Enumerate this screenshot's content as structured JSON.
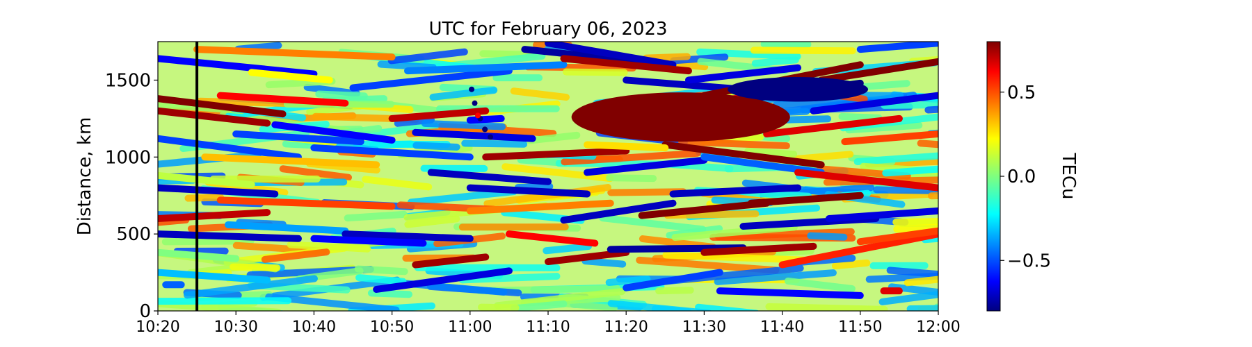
{
  "chart_data": {
    "type": "heatmap",
    "title": "UTC for February 06, 2023",
    "xlabel": "",
    "ylabel": "Distance, km",
    "colorbar_label": "TECu",
    "colormap": "jet",
    "grid": false,
    "x_ticks": [
      "10:20",
      "10:30",
      "10:40",
      "10:50",
      "11:00",
      "11:10",
      "11:20",
      "11:30",
      "11:40",
      "11:50",
      "12:00"
    ],
    "x_range_minutes": [
      0,
      100
    ],
    "y_ticks": [
      0,
      500,
      1000,
      1500
    ],
    "y_range": [
      0,
      1750
    ],
    "colorbar_ticks": [
      {
        "value": 0.5,
        "label": "0.5"
      },
      {
        "value": 0.0,
        "label": "0.0"
      },
      {
        "value": -0.5,
        "label": "−0.5"
      }
    ],
    "colorbar_range": [
      -0.8,
      0.8
    ],
    "marker": {
      "time": "10:25"
    },
    "tracks": [
      {
        "t0": 0,
        "d0": 1380,
        "t1": 16,
        "d1": 1280,
        "v": 0.8
      },
      {
        "t0": 0,
        "d0": 1640,
        "t1": 20,
        "d1": 1540,
        "v": -0.6
      },
      {
        "t0": 0,
        "d0": 1300,
        "t1": 14,
        "d1": 1220,
        "v": 0.75
      },
      {
        "t0": 0,
        "d0": 1120,
        "t1": 18,
        "d1": 1000,
        "v": -0.5
      },
      {
        "t0": 0,
        "d0": 880,
        "t1": 12,
        "d1": 820,
        "v": 0.1
      },
      {
        "t0": 0,
        "d0": 800,
        "t1": 15,
        "d1": 760,
        "v": -0.7
      },
      {
        "t0": 0,
        "d0": 600,
        "t1": 14,
        "d1": 640,
        "v": 0.7
      },
      {
        "t0": 0,
        "d0": 500,
        "t1": 18,
        "d1": 470,
        "v": -0.7
      },
      {
        "t0": 0,
        "d0": 380,
        "t1": 10,
        "d1": 340,
        "v": 0.0
      },
      {
        "t0": 0,
        "d0": 250,
        "t1": 14,
        "d1": 200,
        "v": -0.3
      },
      {
        "t0": 1,
        "d0": 170,
        "t1": 3,
        "d1": 170,
        "v": -0.45
      },
      {
        "t0": 8,
        "d0": 1400,
        "t1": 24,
        "d1": 1350,
        "v": 0.6
      },
      {
        "t0": 10,
        "d0": 1150,
        "t1": 26,
        "d1": 1100,
        "v": -0.5
      },
      {
        "t0": 5,
        "d0": 1700,
        "t1": 30,
        "d1": 1650,
        "v": 0.4
      },
      {
        "t0": 6,
        "d0": 1000,
        "t1": 28,
        "d1": 950,
        "v": 0.3
      },
      {
        "t0": 8,
        "d0": 720,
        "t1": 30,
        "d1": 680,
        "v": 0.5
      },
      {
        "t0": 9,
        "d0": 560,
        "t1": 24,
        "d1": 520,
        "v": -0.35
      },
      {
        "t0": 15,
        "d0": 1210,
        "t1": 30,
        "d1": 1110,
        "v": -0.6
      },
      {
        "t0": 20,
        "d0": 1060,
        "t1": 40,
        "d1": 1000,
        "v": -0.5
      },
      {
        "t0": 25,
        "d0": 1450,
        "t1": 45,
        "d1": 1560,
        "v": -0.5
      },
      {
        "t0": 30,
        "d0": 1250,
        "t1": 42,
        "d1": 1300,
        "v": 0.7
      },
      {
        "t0": 24,
        "d0": 500,
        "t1": 40,
        "d1": 470,
        "v": -0.7
      },
      {
        "t0": 20,
        "d0": 470,
        "t1": 34,
        "d1": 440,
        "v": -0.6
      },
      {
        "t0": 33,
        "d0": 300,
        "t1": 42,
        "d1": 350,
        "v": 0.75
      },
      {
        "t0": 28,
        "d0": 140,
        "t1": 45,
        "d1": 260,
        "v": -0.65
      },
      {
        "t0": 32,
        "d0": 1560,
        "t1": 52,
        "d1": 1600,
        "v": -0.4
      },
      {
        "t0": 33,
        "d0": 1160,
        "t1": 48,
        "d1": 1120,
        "v": -0.65
      },
      {
        "t0": 35,
        "d0": 900,
        "t1": 50,
        "d1": 840,
        "v": -0.7
      },
      {
        "t0": 40,
        "d0": 800,
        "t1": 55,
        "d1": 760,
        "v": -0.7
      },
      {
        "t0": 40,
        "d0": 650,
        "t1": 58,
        "d1": 700,
        "v": 0.4
      },
      {
        "t0": 42,
        "d0": 1000,
        "t1": 60,
        "d1": 1040,
        "v": 0.75
      },
      {
        "t0": 45,
        "d0": 500,
        "t1": 56,
        "d1": 440,
        "v": 0.6
      },
      {
        "t0": 47,
        "d0": 1700,
        "t1": 62,
        "d1": 1620,
        "v": -0.75
      },
      {
        "t0": 50,
        "d0": 1740,
        "t1": 66,
        "d1": 1600,
        "v": -0.7
      },
      {
        "t0": 52,
        "d0": 1640,
        "t1": 68,
        "d1": 1560,
        "v": 0.75
      },
      {
        "t0": 50,
        "d0": 320,
        "t1": 60,
        "d1": 380,
        "v": 0.75
      },
      {
        "t0": 52,
        "d0": 590,
        "t1": 66,
        "d1": 700,
        "v": -0.7
      },
      {
        "t0": 55,
        "d0": 900,
        "t1": 70,
        "d1": 980,
        "v": -0.65
      },
      {
        "t0": 58,
        "d0": 1300,
        "t1": 78,
        "d1": 1400,
        "v": 0.6
      },
      {
        "t0": 60,
        "d0": 1500,
        "t1": 80,
        "d1": 1420,
        "v": -0.7
      },
      {
        "t0": 62,
        "d0": 1180,
        "t1": 75,
        "d1": 1240,
        "v": -0.5
      },
      {
        "t0": 58,
        "d0": 400,
        "t1": 75,
        "d1": 410,
        "v": -0.75
      },
      {
        "t0": 60,
        "d0": 150,
        "t1": 72,
        "d1": 250,
        "v": -0.5
      },
      {
        "t0": 62,
        "d0": 620,
        "t1": 78,
        "d1": 700,
        "v": 0.8
      },
      {
        "t0": 65,
        "d0": 1080,
        "t1": 85,
        "d1": 950,
        "v": 0.8
      },
      {
        "t0": 66,
        "d0": 760,
        "t1": 82,
        "d1": 800,
        "v": -0.7
      },
      {
        "t0": 68,
        "d0": 1500,
        "t1": 82,
        "d1": 1580,
        "v": -0.65
      },
      {
        "t0": 70,
        "d0": 1400,
        "t1": 90,
        "d1": 1600,
        "v": 0.8
      },
      {
        "t0": 72,
        "d0": 1350,
        "t1": 90,
        "d1": 1480,
        "v": -0.8
      },
      {
        "t0": 70,
        "d0": 1000,
        "t1": 85,
        "d1": 900,
        "v": -0.45
      },
      {
        "t0": 70,
        "d0": 380,
        "t1": 84,
        "d1": 420,
        "v": 0.75
      },
      {
        "t0": 72,
        "d0": 130,
        "t1": 90,
        "d1": 100,
        "v": -0.6
      },
      {
        "t0": 75,
        "d0": 550,
        "t1": 92,
        "d1": 600,
        "v": -0.7
      },
      {
        "t0": 76,
        "d0": 700,
        "t1": 90,
        "d1": 750,
        "v": 0.8
      },
      {
        "t0": 78,
        "d0": 1150,
        "t1": 95,
        "d1": 1250,
        "v": 0.65
      },
      {
        "t0": 80,
        "d0": 300,
        "t1": 100,
        "d1": 500,
        "v": 0.55
      },
      {
        "t0": 82,
        "d0": 900,
        "t1": 100,
        "d1": 800,
        "v": 0.65
      },
      {
        "t0": 84,
        "d0": 1300,
        "t1": 100,
        "d1": 1400,
        "v": -0.65
      },
      {
        "t0": 85,
        "d0": 1500,
        "t1": 100,
        "d1": 1620,
        "v": 0.8
      },
      {
        "t0": 86,
        "d0": 600,
        "t1": 100,
        "d1": 650,
        "v": -0.65
      },
      {
        "t0": 88,
        "d0": 1100,
        "t1": 100,
        "d1": 1150,
        "v": 0.5
      },
      {
        "t0": 90,
        "d0": 1700,
        "t1": 100,
        "d1": 1740,
        "v": -0.5
      },
      {
        "t0": 90,
        "d0": 450,
        "t1": 100,
        "d1": 520,
        "v": 0.5
      },
      {
        "t0": 93,
        "d0": 130,
        "t1": 95,
        "d1": 130,
        "v": 0.65
      },
      {
        "t0": 40,
        "d0": 1240,
        "t1": 44,
        "d1": 1250,
        "v": -0.6
      },
      {
        "t0": 55,
        "d0": 1080,
        "t1": 65,
        "d1": 1060,
        "v": 0.25
      },
      {
        "t0": 12,
        "d0": 1550,
        "t1": 22,
        "d1": 1500,
        "v": 0.2
      }
    ],
    "blobs": [
      {
        "t": 67,
        "d": 1260,
        "rt": 14,
        "rd": 160,
        "v": 0.8
      },
      {
        "t": 82,
        "d": 1440,
        "rt": 9,
        "rd": 80,
        "v": -0.8
      }
    ],
    "points": [
      {
        "t": 40.2,
        "d": 1440,
        "v": -0.8
      },
      {
        "t": 40.6,
        "d": 1350,
        "v": -0.8
      },
      {
        "t": 41.3,
        "d": 1250,
        "v": -0.8
      },
      {
        "t": 41.9,
        "d": 1180,
        "v": -0.8
      },
      {
        "t": 42.6,
        "d": 1130,
        "v": -0.8
      },
      {
        "t": 41.0,
        "d": 1270,
        "v": 0.6
      }
    ]
  }
}
